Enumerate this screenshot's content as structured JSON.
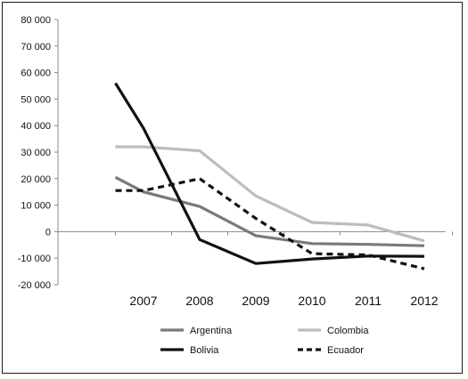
{
  "chart_data": {
    "type": "line",
    "title": "",
    "xlabel": "",
    "ylabel": "",
    "x": [
      "2007",
      "2008",
      "2009",
      "2010",
      "2011",
      "2012"
    ],
    "ylim": [
      -20000,
      80000
    ],
    "yticks": [
      80000,
      70000,
      60000,
      50000,
      40000,
      30000,
      20000,
      10000,
      0,
      -10000,
      -20000
    ],
    "ytick_labels": [
      "80 000",
      "70 000",
      "60 000",
      "50 000",
      "40 000",
      "30 000",
      "20 000",
      "10 000",
      "0",
      "-10 000",
      "-20 000"
    ],
    "grid": false,
    "legend_position": "bottom",
    "series": [
      {
        "name": "Argentina",
        "color": "#7a7a7a",
        "dash": "solid",
        "points": [
          [
            2006.5,
            20500
          ],
          [
            2007.0,
            15000
          ],
          [
            2008.0,
            9500
          ],
          [
            2009.0,
            -1500
          ],
          [
            2010.0,
            -4500
          ],
          [
            2011.0,
            -4800
          ],
          [
            2012.0,
            -5300
          ]
        ]
      },
      {
        "name": "Colombia",
        "color": "#bdbdbd",
        "dash": "solid",
        "points": [
          [
            2006.5,
            32000
          ],
          [
            2007.0,
            32000
          ],
          [
            2008.0,
            30500
          ],
          [
            2009.0,
            13500
          ],
          [
            2010.0,
            3500
          ],
          [
            2011.0,
            2500
          ],
          [
            2012.0,
            -3500
          ]
        ]
      },
      {
        "name": "Bolivia",
        "color": "#111111",
        "dash": "solid",
        "points": [
          [
            2006.5,
            56000
          ],
          [
            2007.0,
            39000
          ],
          [
            2008.0,
            -3000
          ],
          [
            2009.0,
            -12000
          ],
          [
            2010.0,
            -10300
          ],
          [
            2011.0,
            -9200
          ],
          [
            2012.0,
            -9300
          ]
        ]
      },
      {
        "name": "Ecuador",
        "color": "#111111",
        "dash": "dashed",
        "points": [
          [
            2006.5,
            15500
          ],
          [
            2007.0,
            15500
          ],
          [
            2008.0,
            20000
          ],
          [
            2009.0,
            5000
          ],
          [
            2010.0,
            -8300
          ],
          [
            2011.0,
            -8800
          ],
          [
            2012.0,
            -14000
          ]
        ]
      }
    ]
  }
}
